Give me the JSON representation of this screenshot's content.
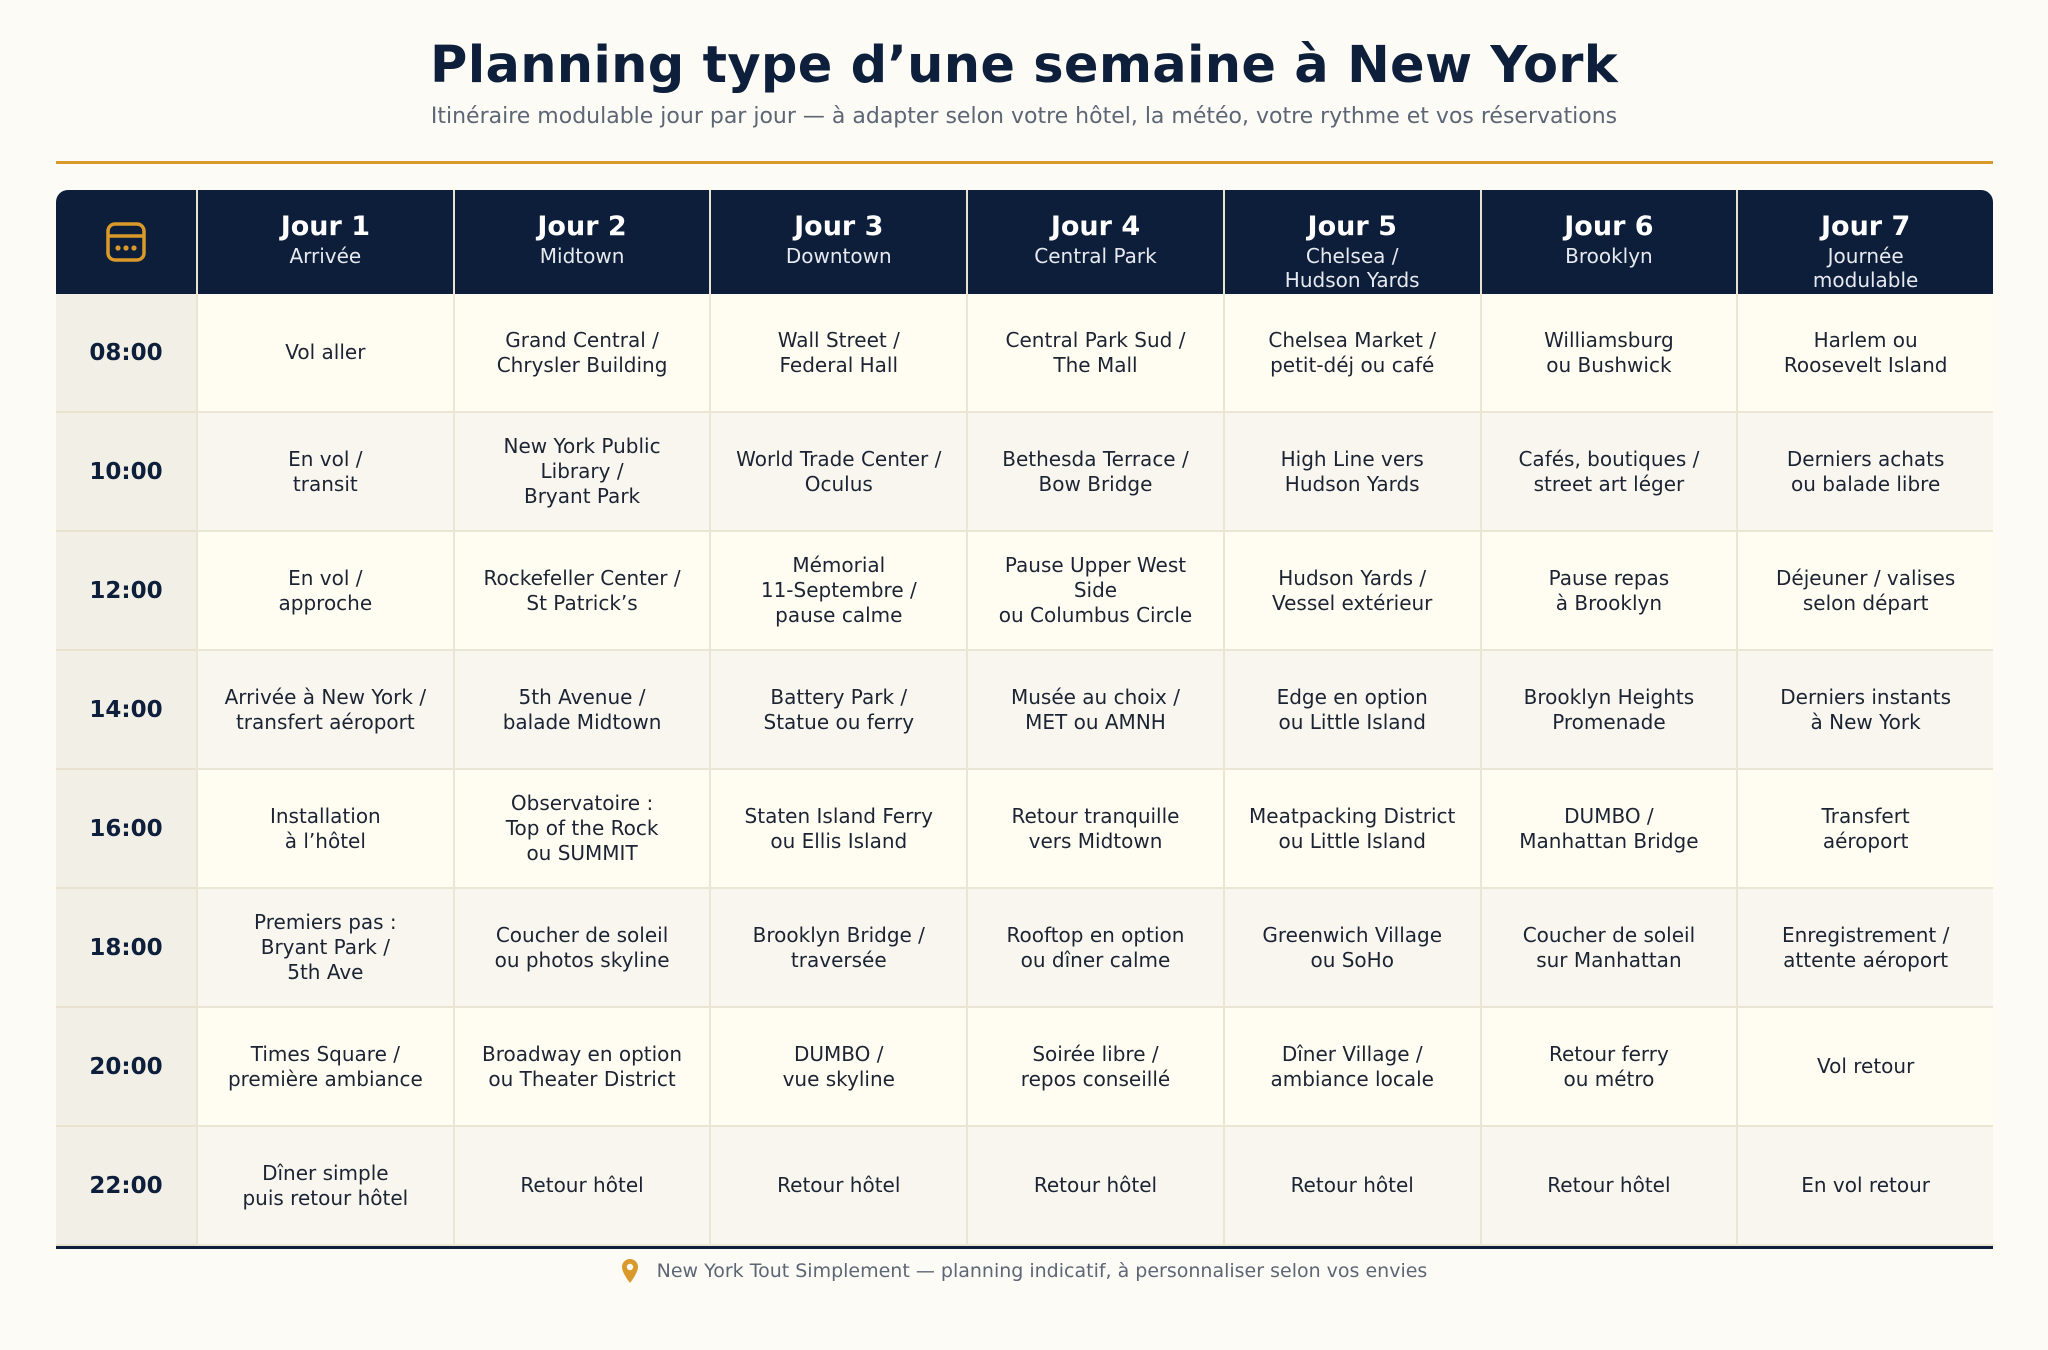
{
  "header": {
    "title": "Planning type d’une semaine à New York",
    "subtitle": "Itinéraire modulable jour par jour — à adapter selon votre hôtel, la météo, votre rythme et vos réservations"
  },
  "colors": {
    "navy": "#0d1e3a",
    "accent": "#d99a2b"
  },
  "icons": {
    "corner": "calendar-icon",
    "footer": "map-pin-icon"
  },
  "days": [
    {
      "label": "Jour 1",
      "sub": "Arrivée"
    },
    {
      "label": "Jour 2",
      "sub": "Midtown"
    },
    {
      "label": "Jour 3",
      "sub": "Downtown"
    },
    {
      "label": "Jour 4",
      "sub": "Central Park"
    },
    {
      "label": "Jour 5",
      "sub": "Chelsea /\nHudson Yards"
    },
    {
      "label": "Jour 6",
      "sub": "Brooklyn"
    },
    {
      "label": "Jour 7",
      "sub": "Journée\nmodulable"
    }
  ],
  "rows": [
    {
      "time": "08:00",
      "cells": [
        "Vol aller",
        "Grand Central /\nChrysler Building",
        "Wall Street /\nFederal Hall",
        "Central Park Sud /\nThe Mall",
        "Chelsea Market /\npetit-déj ou café",
        "Williamsburg\nou Bushwick",
        "Harlem ou\nRoosevelt Island"
      ]
    },
    {
      "time": "10:00",
      "cells": [
        "En vol /\ntransit",
        "New York Public\nLibrary /\nBryant Park",
        "World Trade Center /\nOculus",
        "Bethesda Terrace /\nBow Bridge",
        "High Line vers\nHudson Yards",
        "Cafés, boutiques /\nstreet art léger",
        "Derniers achats\nou balade libre"
      ]
    },
    {
      "time": "12:00",
      "cells": [
        "En vol /\napproche",
        "Rockefeller Center /\nSt Patrick’s",
        "Mémorial\n11-Septembre /\npause calme",
        "Pause Upper West\nSide\nou Columbus Circle",
        "Hudson Yards /\nVessel extérieur",
        "Pause repas\nà Brooklyn",
        "Déjeuner / valises\nselon départ"
      ]
    },
    {
      "time": "14:00",
      "cells": [
        "Arrivée à New York /\ntransfert aéroport",
        "5th Avenue /\nbalade Midtown",
        "Battery Park /\nStatue ou ferry",
        "Musée au choix /\nMET ou AMNH",
        "Edge en option\nou Little Island",
        "Brooklyn Heights\nPromenade",
        "Derniers instants\nà New York"
      ]
    },
    {
      "time": "16:00",
      "cells": [
        "Installation\nà l’hôtel",
        "Observatoire :\nTop of the Rock\nou SUMMIT",
        "Staten Island Ferry\nou Ellis Island",
        "Retour tranquille\nvers Midtown",
        "Meatpacking District\nou Little Island",
        "DUMBO /\nManhattan Bridge",
        "Transfert\naéroport"
      ]
    },
    {
      "time": "18:00",
      "cells": [
        "Premiers pas :\nBryant Park /\n5th Ave",
        "Coucher de soleil\nou photos skyline",
        "Brooklyn Bridge /\ntraversée",
        "Rooftop en option\nou dîner calme",
        "Greenwich Village\nou SoHo",
        "Coucher de soleil\nsur Manhattan",
        "Enregistrement /\nattente aéroport"
      ]
    },
    {
      "time": "20:00",
      "cells": [
        "Times Square /\npremière ambiance",
        "Broadway en option\nou Theater District",
        "DUMBO /\nvue skyline",
        "Soirée libre /\nrepos conseillé",
        "Dîner Village /\nambiance locale",
        "Retour ferry\nou métro",
        "Vol retour"
      ]
    },
    {
      "time": "22:00",
      "cells": [
        "Dîner simple\npuis retour hôtel",
        "Retour hôtel",
        "Retour hôtel",
        "Retour hôtel",
        "Retour hôtel",
        "Retour hôtel",
        "En vol retour"
      ]
    }
  ],
  "footer": {
    "text": "New York Tout Simplement — planning indicatif, à personnaliser selon vos envies"
  }
}
